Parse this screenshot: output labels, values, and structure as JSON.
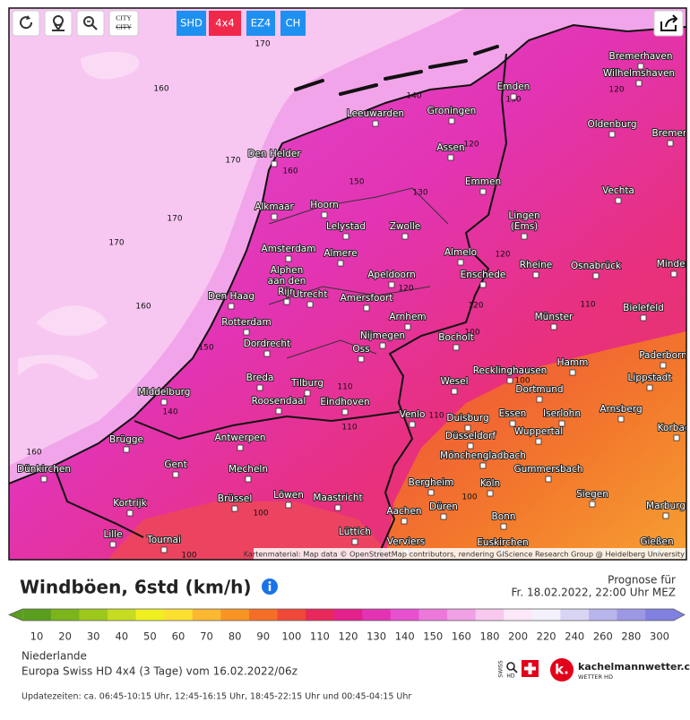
{
  "toolbar": {
    "buttons": [
      "SHD",
      "4x4",
      "EZ4",
      "CH"
    ],
    "city_icon": "CITY"
  },
  "map": {
    "cities": [
      [
        "Bremerhaven"
      ],
      [
        "Wilhelmshaven"
      ],
      [
        "Emden"
      ],
      [
        "Leeuwarden"
      ],
      [
        "Groningen"
      ],
      [
        "Oldenburg"
      ],
      [
        "Bremen"
      ],
      [
        "Den Helder"
      ],
      [
        "Assen"
      ],
      [
        "Emmen"
      ],
      [
        "Vechta"
      ],
      [
        "Alkmaar"
      ],
      [
        "Hoorn"
      ],
      [
        "Lelystad"
      ],
      [
        "Zwolle"
      ],
      [
        "Lingen",
        "(Ems)"
      ],
      [
        "Amsterdam"
      ],
      [
        "Almere"
      ],
      [
        "Almelo"
      ],
      [
        "Rheine"
      ],
      [
        "Osnabrück"
      ],
      [
        "Minden"
      ],
      [
        "Alphen",
        "aan den",
        "Rijn"
      ],
      [
        "Apeldoorn"
      ],
      [
        "Enschede"
      ],
      [
        "Den Haag"
      ],
      [
        "Utrecht"
      ],
      [
        "Amersfoort"
      ],
      [
        "Bielefeld"
      ],
      [
        "Arnhem"
      ],
      [
        "Münster"
      ],
      [
        "Rotterdam"
      ],
      [
        "Nijmegen"
      ],
      [
        "Bocholt"
      ],
      [
        "Dordrecht"
      ],
      [
        "Oss"
      ],
      [
        "Paderborn"
      ],
      [
        "Hamm"
      ],
      [
        "Recklinghausen"
      ],
      [
        "Breda"
      ],
      [
        "Tilburg"
      ],
      [
        "Wesel"
      ],
      [
        "Lippstadt"
      ],
      [
        "Middelburg"
      ],
      [
        "Dortmund"
      ],
      [
        "Roosendaal"
      ],
      [
        "Eindhoven"
      ],
      [
        "Venlo"
      ],
      [
        "Duisburg"
      ],
      [
        "Essen"
      ],
      [
        "Iserlohn"
      ],
      [
        "Arnsberg"
      ],
      [
        "Korbach"
      ],
      [
        "Wuppertal"
      ],
      [
        "Brügge"
      ],
      [
        "Antwerpen"
      ],
      [
        "Düsseldorf"
      ],
      [
        "Mönchengladbach"
      ],
      [
        "Dünkirchen"
      ],
      [
        "Gent"
      ],
      [
        "Mecheln"
      ],
      [
        "Gummersbach"
      ],
      [
        "Bergheim"
      ],
      [
        "Köln"
      ],
      [
        "Brüssel"
      ],
      [
        "Löwen"
      ],
      [
        "Maastricht"
      ],
      [
        "Siegen"
      ],
      [
        "Kortrijk"
      ],
      [
        "Düren"
      ],
      [
        "Marburg"
      ],
      [
        "Aachen"
      ],
      [
        "Bonn"
      ],
      [
        "Lille"
      ],
      [
        "Tournai"
      ],
      [
        "Lüttich"
      ],
      [
        "Verviers"
      ],
      [
        "Euskirchen"
      ],
      [
        "Gießen"
      ]
    ],
    "contour_labels": [
      170,
      160,
      170,
      170,
      170,
      160,
      150,
      140,
      130,
      120,
      120,
      160,
      150,
      130,
      120,
      120,
      120,
      110,
      100,
      110,
      110,
      110,
      100,
      100,
      100,
      100,
      160,
      140
    ],
    "attribution": "Kartenmaterial: Map data © OpenStreetMap contributors, rendering GIScience Research Group @ Heidelberg University"
  },
  "header": {
    "title": "Windböen, 6std (km/h)",
    "forecast_label": "Prognose für",
    "forecast_time": "Fr. 18.02.2022, 22:00 Uhr MEZ"
  },
  "legend": {
    "ticks": [
      10,
      20,
      30,
      40,
      50,
      60,
      70,
      80,
      90,
      100,
      110,
      120,
      130,
      140,
      150,
      160,
      180,
      200,
      220,
      240,
      260,
      280,
      300
    ],
    "colors": [
      "#5a9e1e",
      "#7ab51c",
      "#9cc81c",
      "#c6dc20",
      "#f0f020",
      "#fce030",
      "#fcb830",
      "#f99424",
      "#f56e28",
      "#f04838",
      "#e8285a",
      "#e4208c",
      "#e432b4",
      "#e850d0",
      "#ec78dc",
      "#f0a0e4",
      "#f8c8ee",
      "#fce8f8",
      "#f4f0fc",
      "#d8d4f4",
      "#b8b4ec",
      "#9c98e4",
      "#8080e0"
    ]
  },
  "footer": {
    "region": "Niederlande",
    "model": "Europa Swiss HD 4x4 (3 Tage) vom 16.02.2022/06z",
    "update_times": "Updatezeiten: ca. 06:45-10:15 Uhr, 12:45-16:15 Uhr, 18:45-22:15 Uhr und 00:45-04:15 Uhr",
    "swiss": "SWISS",
    "hd": "HD",
    "logo_k": "k.",
    "logo_text": "kachelmannwetter.com",
    "logo_sub": "WETTER HD"
  }
}
